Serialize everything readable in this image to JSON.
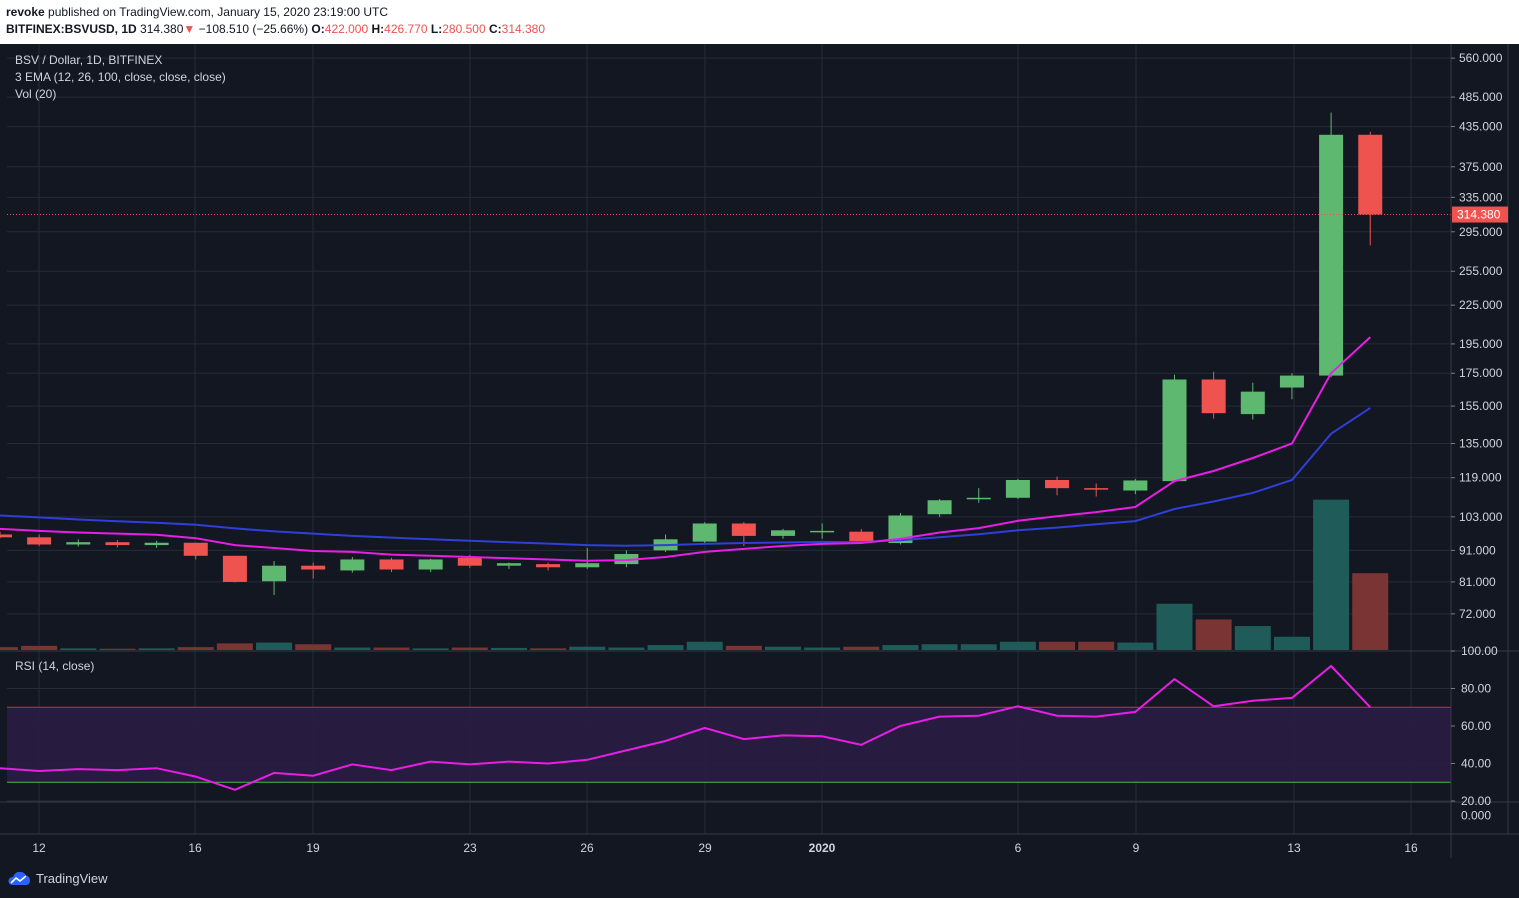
{
  "header": {
    "author": "revoke",
    "published_text": "published on TradingView.com, January 15, 2020 23:19:00 UTC",
    "symbol": "BITFINEX:BSVUSD, 1D",
    "last": "314.380",
    "change_arrow": "▼",
    "change": "−108.510 (−25.66%)",
    "o_label": "O:",
    "o_value": "422.000",
    "h_label": "H:",
    "h_value": "426.770",
    "l_label": "L:",
    "l_value": "280.500",
    "c_label": "C:",
    "c_value": "314.380"
  },
  "legend": {
    "title": "BSV / Dollar, 1D, BITFINEX",
    "ema": "3 EMA (12, 26, 100, close, close, close)",
    "vol": "Vol (20)",
    "rsi": "RSI (14, close)"
  },
  "footer": {
    "brand": "TradingView"
  },
  "colors": {
    "up": "#5fb86f",
    "down": "#ef5350",
    "ema_fast": "#e91ee6",
    "ema_slow": "#2f3fd8",
    "rsi": "#e91ee6",
    "background": "#131722",
    "rsi_band": "#2a1c42"
  },
  "chart_data": {
    "type": "candlestick",
    "price_axis": {
      "scale": "log",
      "range": [
        63,
        590
      ],
      "ticks": [
        "560.000",
        "485.000",
        "435.000",
        "375.000",
        "335.000",
        "295.000",
        "255.000",
        "225.000",
        "195.000",
        "175.000",
        "155.000",
        "135.000",
        "119.000",
        "103.000",
        "91.000",
        "81.000",
        "72.000"
      ],
      "current_price_label": "314.380"
    },
    "x_ticks": [
      "12",
      "16",
      "19",
      "23",
      "26",
      "29",
      "2020",
      "6",
      "9",
      "13",
      "16"
    ],
    "candles": [
      {
        "date": "2019-12-11",
        "o": 96.5,
        "h": 97.5,
        "l": 95.2,
        "c": 95.5
      },
      {
        "date": "2019-12-12",
        "o": 95.5,
        "h": 96.5,
        "l": 92.5,
        "c": 93.0
      },
      {
        "date": "2019-12-13",
        "o": 93.0,
        "h": 94.8,
        "l": 92.3,
        "c": 93.8
      },
      {
        "date": "2019-12-14",
        "o": 93.8,
        "h": 94.5,
        "l": 92.0,
        "c": 92.8
      },
      {
        "date": "2019-12-15",
        "o": 92.8,
        "h": 94.3,
        "l": 91.8,
        "c": 93.6
      },
      {
        "date": "2019-12-16",
        "o": 93.6,
        "h": 93.6,
        "l": 88.0,
        "c": 89.2
      },
      {
        "date": "2019-12-17",
        "o": 89.2,
        "h": 89.2,
        "l": 80.8,
        "c": 81.0
      },
      {
        "date": "2019-12-18",
        "o": 81.2,
        "h": 87.5,
        "l": 77.2,
        "c": 86.0
      },
      {
        "date": "2019-12-19",
        "o": 86.0,
        "h": 87.0,
        "l": 82.0,
        "c": 84.8
      },
      {
        "date": "2019-12-20",
        "o": 84.5,
        "h": 88.8,
        "l": 83.8,
        "c": 88.0
      },
      {
        "date": "2019-12-21",
        "o": 88.0,
        "h": 88.5,
        "l": 84.0,
        "c": 84.8
      },
      {
        "date": "2019-12-22",
        "o": 84.8,
        "h": 88.2,
        "l": 84.0,
        "c": 88.0
      },
      {
        "date": "2019-12-23",
        "o": 88.5,
        "h": 89.5,
        "l": 85.3,
        "c": 86.0
      },
      {
        "date": "2019-12-24",
        "o": 86.0,
        "h": 87.0,
        "l": 85.0,
        "c": 86.8
      },
      {
        "date": "2019-12-25",
        "o": 86.5,
        "h": 87.0,
        "l": 84.5,
        "c": 85.5
      },
      {
        "date": "2019-12-26",
        "o": 85.5,
        "h": 91.8,
        "l": 85.0,
        "c": 86.8
      },
      {
        "date": "2019-12-27",
        "o": 86.5,
        "h": 91.0,
        "l": 85.5,
        "c": 89.8
      },
      {
        "date": "2019-12-28",
        "o": 91.0,
        "h": 96.5,
        "l": 90.5,
        "c": 94.8
      },
      {
        "date": "2019-12-29",
        "o": 94.0,
        "h": 101.0,
        "l": 93.0,
        "c": 100.5
      },
      {
        "date": "2019-12-30",
        "o": 100.5,
        "h": 101.0,
        "l": 92.5,
        "c": 96.0
      },
      {
        "date": "2019-12-31",
        "o": 96.0,
        "h": 98.5,
        "l": 95.0,
        "c": 98.0
      },
      {
        "date": "2020-01-01",
        "o": 97.5,
        "h": 100.5,
        "l": 95.0,
        "c": 97.8
      },
      {
        "date": "2020-01-02",
        "o": 97.5,
        "h": 98.5,
        "l": 93.5,
        "c": 94.0
      },
      {
        "date": "2020-01-03",
        "o": 93.5,
        "h": 104.5,
        "l": 93.0,
        "c": 103.5
      },
      {
        "date": "2020-01-04",
        "o": 104.0,
        "h": 110.0,
        "l": 103.0,
        "c": 109.5
      },
      {
        "date": "2020-01-05",
        "o": 110.0,
        "h": 114.5,
        "l": 108.5,
        "c": 110.5
      },
      {
        "date": "2020-01-06",
        "o": 110.5,
        "h": 118.5,
        "l": 110.0,
        "c": 118.0
      },
      {
        "date": "2020-01-07",
        "o": 118.0,
        "h": 119.5,
        "l": 111.5,
        "c": 114.5
      },
      {
        "date": "2020-01-08",
        "o": 114.5,
        "h": 116.5,
        "l": 111.0,
        "c": 114.2
      },
      {
        "date": "2020-01-09",
        "o": 113.5,
        "h": 118.5,
        "l": 112.0,
        "c": 117.8
      },
      {
        "date": "2020-01-10",
        "o": 117.5,
        "h": 174.0,
        "l": 117.0,
        "c": 171.0
      },
      {
        "date": "2020-01-11",
        "o": 171.0,
        "h": 176.0,
        "l": 148.0,
        "c": 151.0
      },
      {
        "date": "2020-01-12",
        "o": 150.5,
        "h": 169.0,
        "l": 147.5,
        "c": 163.5
      },
      {
        "date": "2020-01-13",
        "o": 166.0,
        "h": 175.0,
        "l": 159.0,
        "c": 173.5
      },
      {
        "date": "2020-01-14",
        "o": 173.5,
        "h": 458.0,
        "l": 172.5,
        "c": 422.0
      },
      {
        "date": "2020-01-15",
        "o": 422.0,
        "h": 426.77,
        "l": 280.5,
        "c": 314.38
      }
    ],
    "ema_fast": [
      98.5,
      97.8,
      97.2,
      96.8,
      96.4,
      95.2,
      92.8,
      91.8,
      90.8,
      90.5,
      89.6,
      89.2,
      88.8,
      88.4,
      88.0,
      87.6,
      87.8,
      88.8,
      90.5,
      91.5,
      92.5,
      93.2,
      93.5,
      95.0,
      97.2,
      98.8,
      101.5,
      103.2,
      104.8,
      106.8,
      117.5,
      122.0,
      128.0,
      135.0,
      175.0,
      200.0
    ],
    "ema_slow": [
      103.5,
      102.8,
      102.0,
      101.3,
      100.8,
      100.0,
      98.7,
      97.6,
      96.8,
      96.0,
      95.4,
      94.8,
      94.3,
      93.8,
      93.3,
      92.8,
      92.6,
      92.8,
      93.2,
      93.5,
      93.7,
      93.9,
      93.8,
      94.5,
      95.5,
      96.6,
      98.0,
      99.0,
      100.2,
      101.4,
      106.0,
      109.0,
      112.5,
      118.0,
      140.0,
      154.0
    ],
    "volume": {
      "values": [
        3.5,
        5.0,
        2.0,
        1.5,
        2.0,
        3.5,
        8.0,
        9.0,
        7.0,
        3.0,
        3.0,
        2.0,
        3.0,
        2.5,
        2.0,
        4.0,
        3.0,
        6.0,
        10.0,
        5.0,
        4.0,
        3.0,
        4.0,
        6.0,
        7.0,
        7.0,
        10.0,
        10.0,
        10.0,
        9.0,
        56.0,
        37.0,
        29.0,
        16.0,
        182.0,
        93.0
      ],
      "max": 230
    },
    "rsi": {
      "values": [
        37.5,
        36,
        37,
        36.5,
        37.5,
        33,
        26,
        35,
        33.5,
        39.5,
        36.5,
        41,
        39.5,
        41,
        40,
        42,
        47,
        52,
        59,
        53,
        55,
        54.5,
        50,
        60,
        65,
        65.5,
        70.5,
        65.5,
        65,
        67.5,
        85,
        70.5,
        73.5,
        75,
        92,
        70
      ],
      "range": [
        20,
        100
      ],
      "overbought": 70,
      "oversold": 30,
      "ticks": [
        "100.00",
        "80.00",
        "60.00",
        "40.00",
        "20.00"
      ],
      "band": [
        40,
        60
      ]
    },
    "extra_pane_tick": "0.000"
  }
}
